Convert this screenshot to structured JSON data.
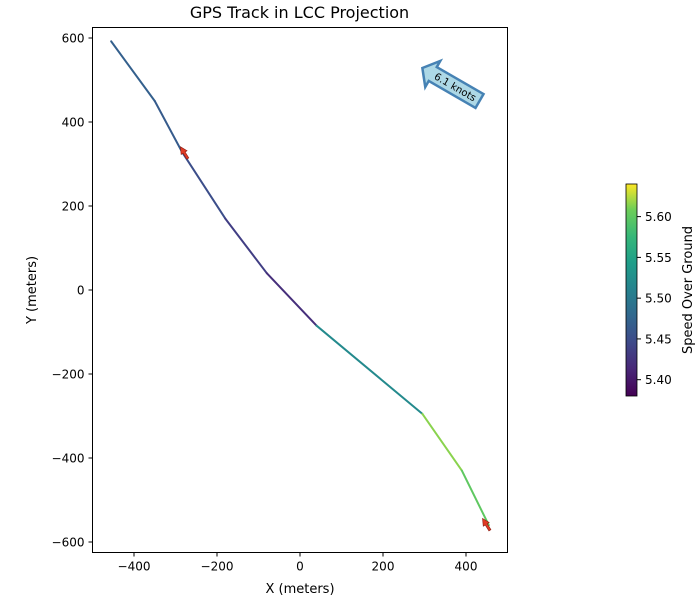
{
  "chart_data": {
    "type": "line",
    "title": "GPS Track in LCC Projection",
    "xlabel": "X (meters)",
    "ylabel": "Y (meters)",
    "xlim": [
      -500,
      500
    ],
    "ylim": [
      -625,
      625
    ],
    "x_ticks": [
      -400,
      -200,
      0,
      200,
      400
    ],
    "y_ticks": [
      -600,
      -400,
      -200,
      0,
      200,
      400,
      600
    ],
    "x_tick_labels": [
      "−400",
      "−200",
      "0",
      "200",
      "400"
    ],
    "y_tick_labels": [
      "−600",
      "−400",
      "−200",
      "0",
      "200",
      "400",
      "600"
    ],
    "grid": false,
    "track": {
      "points": [
        {
          "x": -455,
          "y": 592,
          "speed": 5.47
        },
        {
          "x": -350,
          "y": 450,
          "speed": 5.47
        },
        {
          "x": -285,
          "y": 330,
          "speed": 5.46
        },
        {
          "x": -180,
          "y": 170,
          "speed": 5.44
        },
        {
          "x": -80,
          "y": 40,
          "speed": 5.43
        },
        {
          "x": 40,
          "y": -85,
          "speed": 5.41
        },
        {
          "x": 295,
          "y": -295,
          "speed": 5.63
        },
        {
          "x": 390,
          "y": -430,
          "speed": 5.6
        },
        {
          "x": 455,
          "y": -560,
          "speed": 5.6
        }
      ]
    },
    "vessel_arrows": [
      {
        "x": -278,
        "y": 325,
        "color": "#e03b24"
      },
      {
        "x": 450,
        "y": -560,
        "color": "#e03b24"
      }
    ],
    "annotation": {
      "text": "6.1 knots",
      "box_color": "#add8e6",
      "edge_color": "#4682b4",
      "direction": "up-left"
    },
    "colorbar": {
      "label": "Speed Over Ground",
      "min": 5.38,
      "max": 5.64,
      "ticks": [
        5.4,
        5.45,
        5.5,
        5.55,
        5.6
      ],
      "tick_labels": [
        "5.40",
        "5.45",
        "5.50",
        "5.55",
        "5.60"
      ],
      "colormap": "viridis"
    }
  }
}
